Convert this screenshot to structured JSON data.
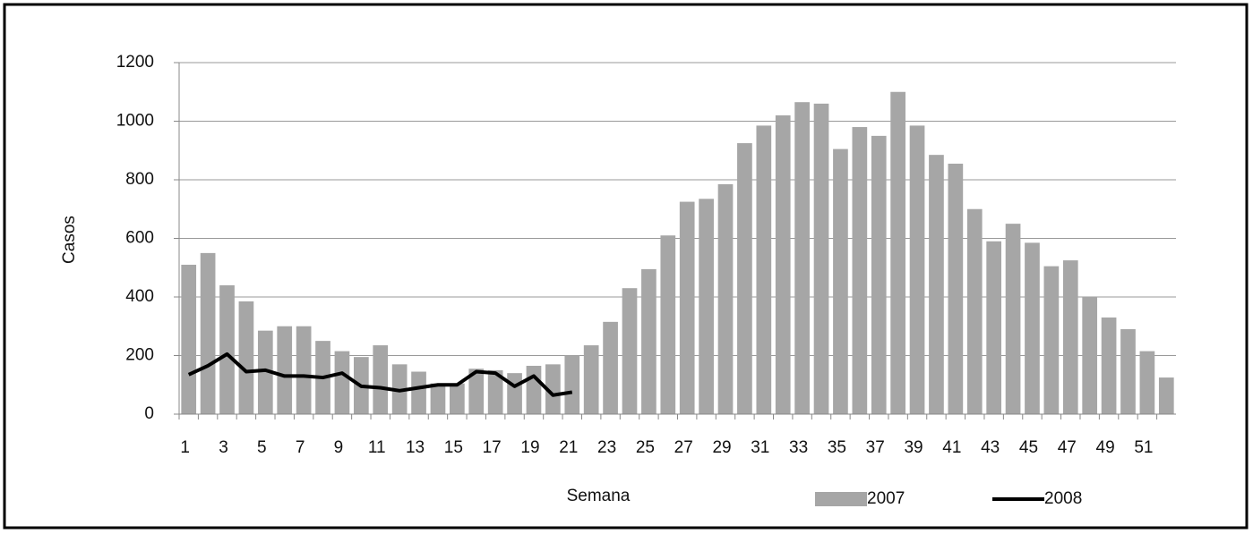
{
  "chart_data": {
    "type": "bar_line",
    "x_label": "Semana",
    "y_label": "Casos",
    "categories": [
      1,
      null,
      3,
      null,
      5,
      null,
      7,
      null,
      9,
      null,
      11,
      null,
      13,
      null,
      15,
      null,
      17,
      null,
      19,
      null,
      21,
      null,
      23,
      null,
      25,
      null,
      27,
      null,
      29,
      null,
      31,
      null,
      33,
      null,
      35,
      null,
      37,
      null,
      39,
      null,
      41,
      null,
      43,
      null,
      45,
      null,
      47,
      null,
      49,
      null,
      51,
      null
    ],
    "series": [
      {
        "name": "2007",
        "type": "bar",
        "color": "#a6a6a6",
        "values": [
          510,
          550,
          440,
          385,
          285,
          300,
          300,
          250,
          215,
          195,
          235,
          170,
          145,
          105,
          105,
          155,
          150,
          140,
          165,
          170,
          200,
          235,
          315,
          430,
          495,
          610,
          725,
          735,
          785,
          925,
          985,
          1020,
          1065,
          1060,
          905,
          980,
          950,
          1100,
          985,
          885,
          855,
          700,
          590,
          650,
          585,
          505,
          525,
          400,
          330,
          290,
          215,
          125
        ]
      },
      {
        "name": "2008",
        "type": "line",
        "color": "#000000",
        "values": [
          135,
          165,
          205,
          145,
          150,
          130,
          130,
          125,
          140,
          95,
          90,
          80,
          90,
          100,
          100,
          145,
          140,
          95,
          130,
          65,
          75,
          null,
          null,
          null,
          null,
          null,
          null,
          null,
          null,
          null,
          null,
          null,
          null,
          null,
          null,
          null,
          null,
          null,
          null,
          null,
          null,
          null,
          null,
          null,
          null,
          null,
          null,
          null,
          null,
          null,
          null,
          null
        ]
      }
    ],
    "ylim": [
      0,
      1200
    ],
    "yticks": [
      0,
      200,
      400,
      600,
      800,
      1000,
      1200
    ],
    "grid": true
  }
}
